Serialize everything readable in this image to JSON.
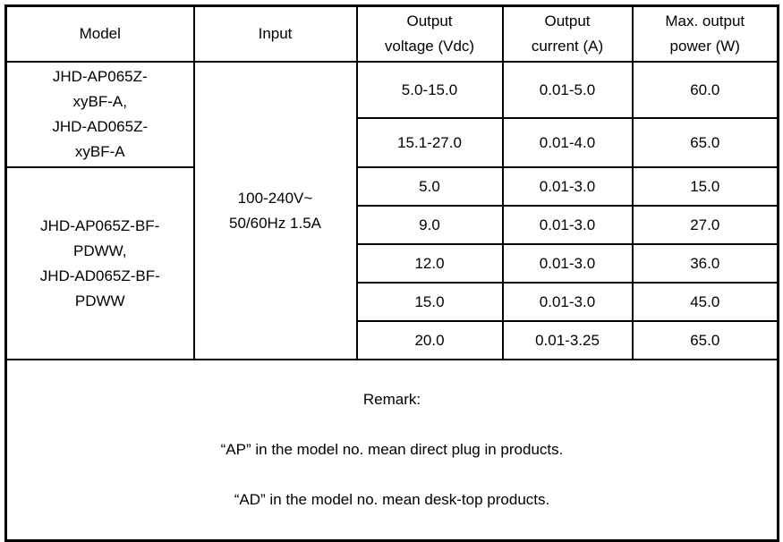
{
  "table": {
    "headers": {
      "model": "Model",
      "input": "Input",
      "output_voltage": "Output\nvoltage (Vdc)",
      "output_current": "Output\ncurrent (A)",
      "max_output_power": "Max. output\npower (W)"
    },
    "model_groups": {
      "group1": "JHD-AP065Z-\nxyBF-A,\nJHD-AD065Z-\nxyBF-A",
      "group2": "JHD-AP065Z-BF-\nPDWW,\nJHD-AD065Z-BF-\nPDWW"
    },
    "input_value": "100-240V~\n50/60Hz 1.5A",
    "rows": [
      {
        "voltage": "5.0-15.0",
        "current": "0.01-5.0",
        "power": "60.0"
      },
      {
        "voltage": "15.1-27.0",
        "current": "0.01-4.0",
        "power": "65.0"
      },
      {
        "voltage": "5.0",
        "current": "0.01-3.0",
        "power": "15.0"
      },
      {
        "voltage": "9.0",
        "current": "0.01-3.0",
        "power": "27.0"
      },
      {
        "voltage": "12.0",
        "current": "0.01-3.0",
        "power": "36.0"
      },
      {
        "voltage": "15.0",
        "current": "0.01-3.0",
        "power": "45.0"
      },
      {
        "voltage": "20.0",
        "current": "0.01-3.25",
        "power": "65.0"
      }
    ],
    "remark": {
      "title": "Remark:",
      "line1": "“AP” in the model no. mean direct plug in products.",
      "line2": "“AD” in the model no. mean desk-top products."
    }
  }
}
